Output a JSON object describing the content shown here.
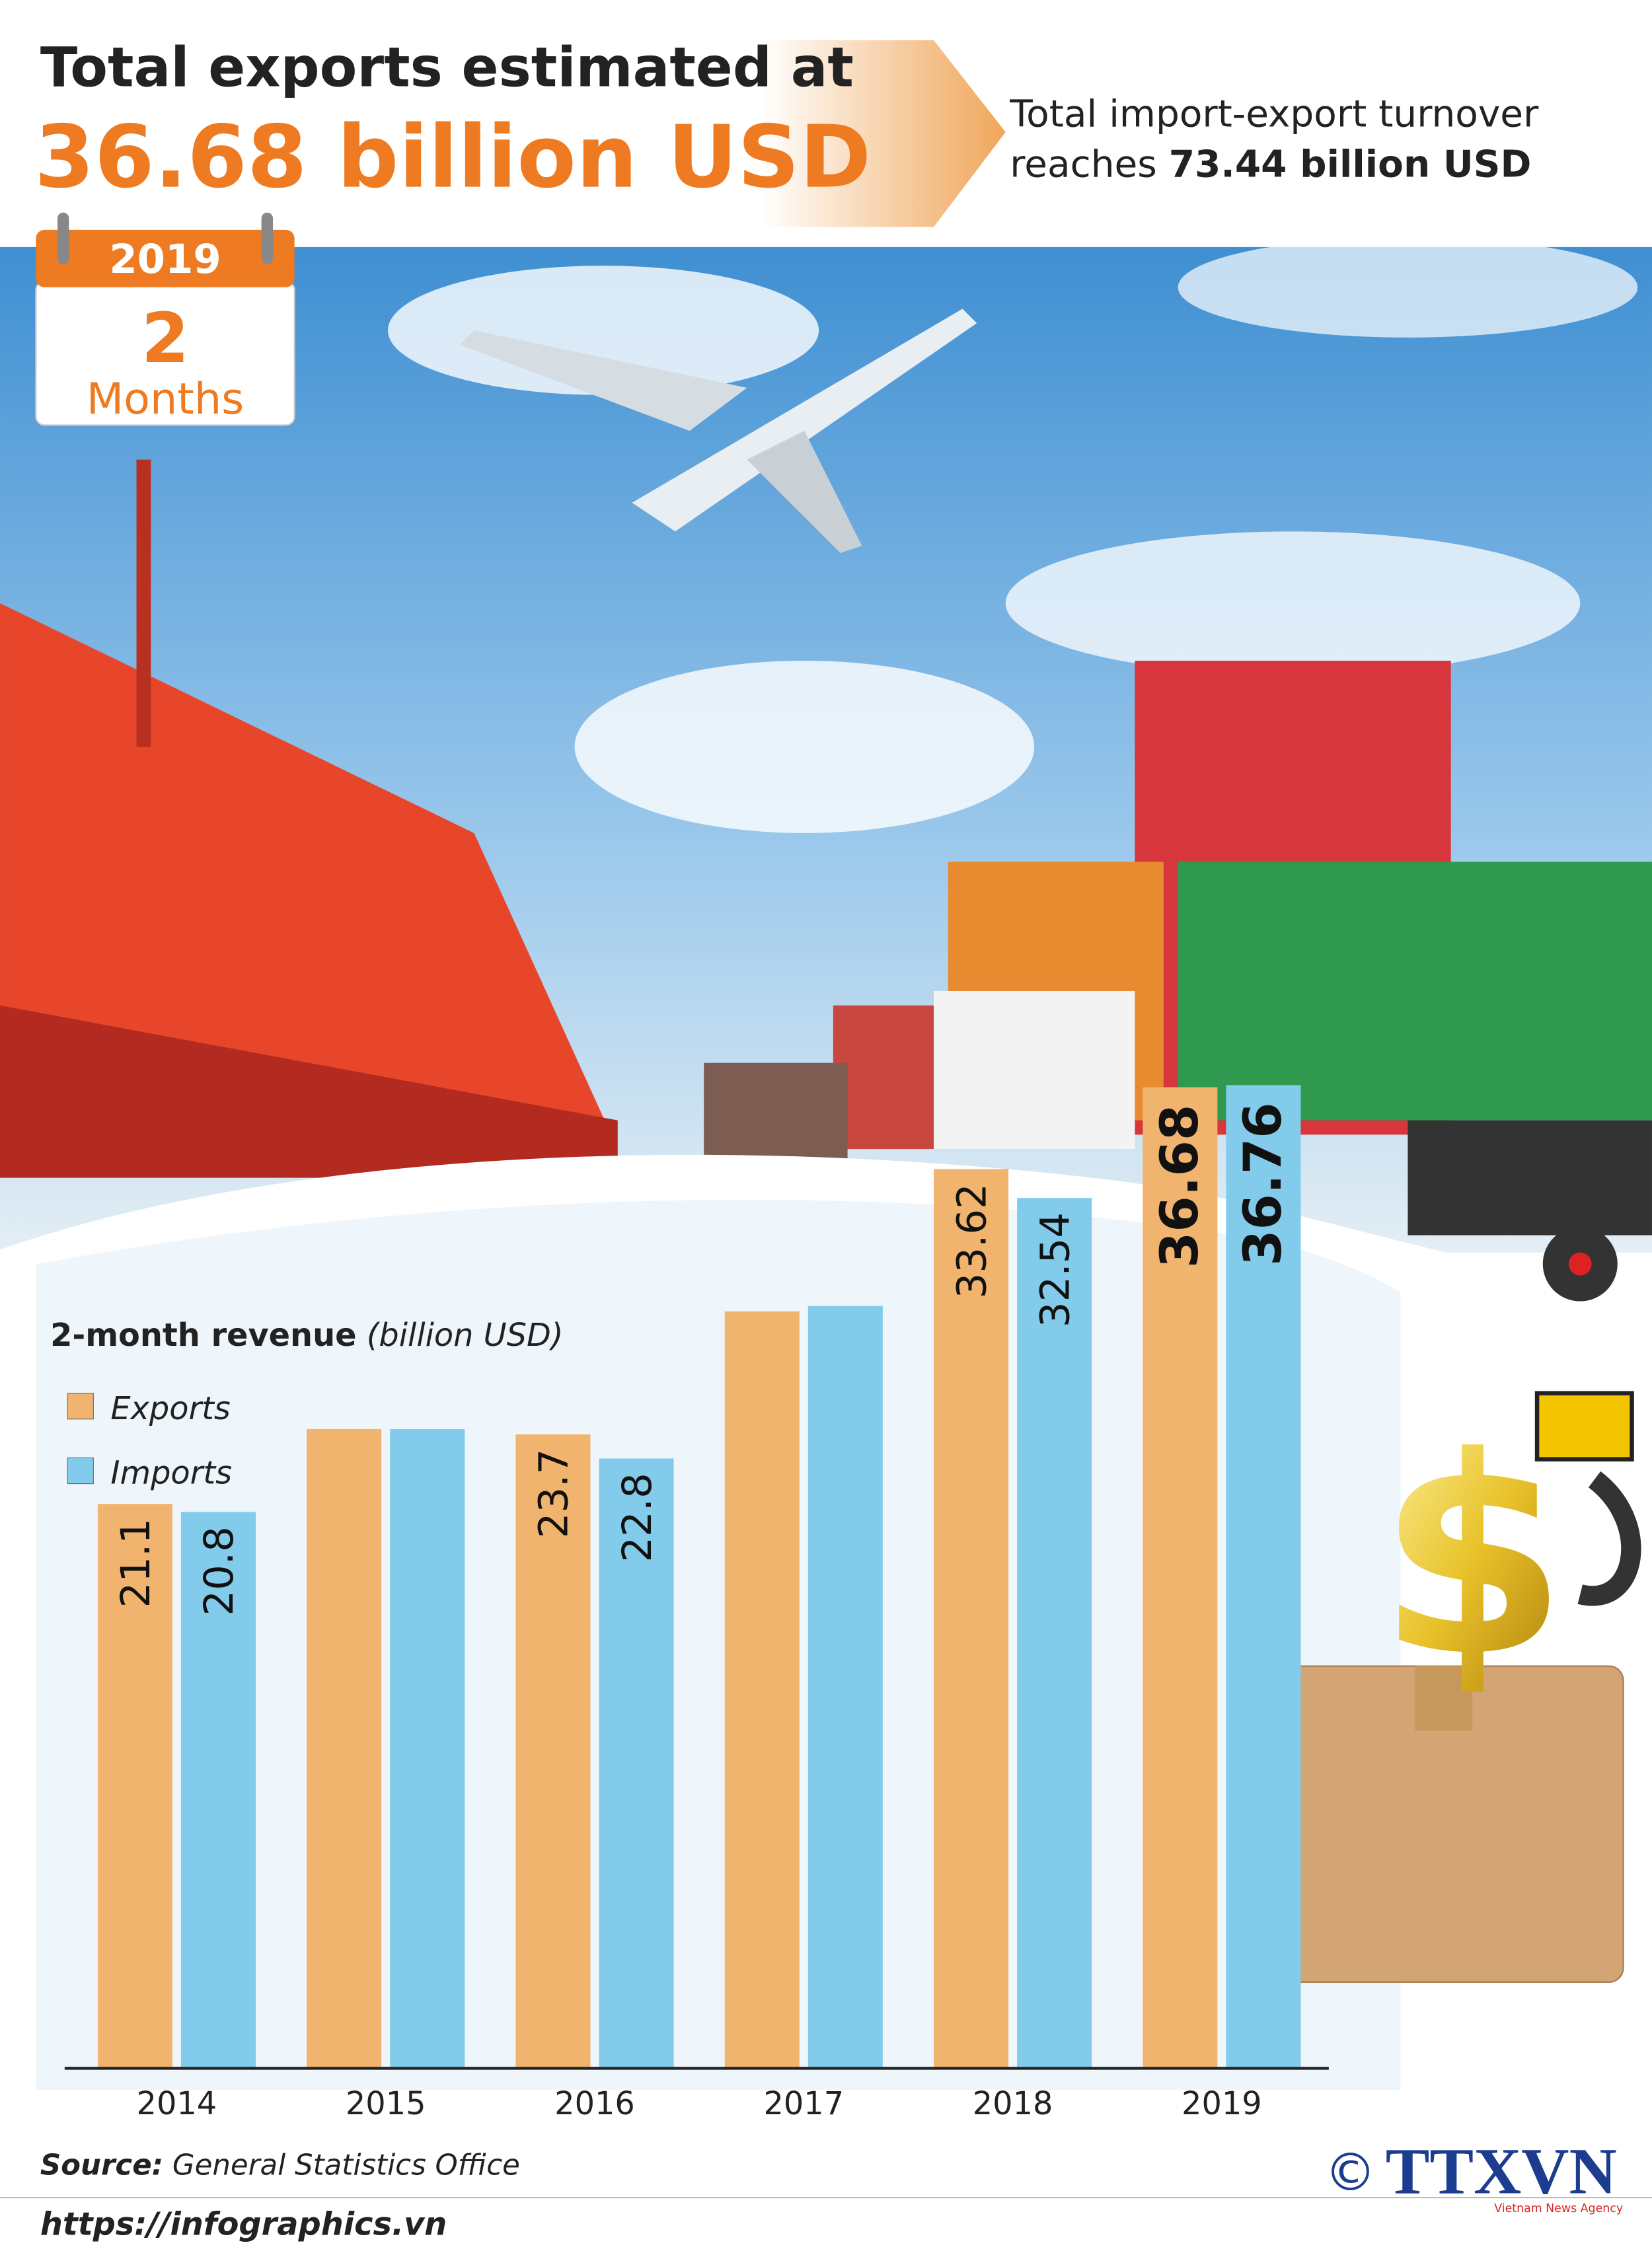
{
  "title_line1": "Total exports estimated at",
  "title_line2": "36.68 billion USD",
  "subtitle_line1": "Total import-export turnover",
  "subtitle_line2": "reaches",
  "subtitle_bold": "73.44 billion USD",
  "calendar": {
    "year": "2019",
    "number": "2",
    "unit": "Months"
  },
  "chart_data": {
    "type": "bar",
    "title": "2-month revenue",
    "unit": "(billion USD)",
    "categories": [
      "2014",
      "2015",
      "2016",
      "2017",
      "2018",
      "2019"
    ],
    "ylim": [
      0,
      37
    ],
    "series": [
      {
        "name": "Exports",
        "color": "#f0b46e",
        "values": [
          21.1,
          23.9,
          23.7,
          28.3,
          33.62,
          36.68
        ],
        "value_labels": [
          "21.1",
          null,
          "23.7",
          null,
          "33.62",
          "36.68"
        ]
      },
      {
        "name": "Imports",
        "color": "#82cbeb",
        "values": [
          20.8,
          23.9,
          22.8,
          28.5,
          32.54,
          36.76
        ],
        "value_labels": [
          "20.8",
          null,
          "22.8",
          null,
          "32.54",
          "36.76"
        ]
      }
    ]
  },
  "footer": {
    "source_label": "Source:",
    "source": "General Statistics Office",
    "url": "https://infographics.vn",
    "copyright": "©",
    "logo": "TTXVN",
    "logo_sub": "Vietnam News Agency"
  }
}
